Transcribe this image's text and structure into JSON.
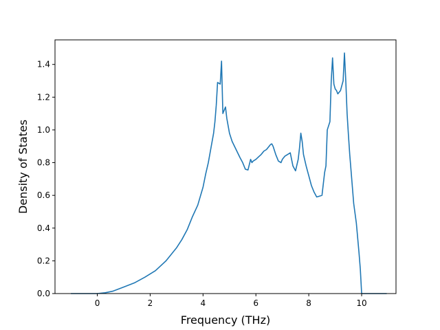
{
  "chart_data": {
    "type": "line",
    "title": "",
    "xlabel": "Frequency (THz)",
    "ylabel": "Density of States",
    "xlim": [
      -1.6,
      11.3
    ],
    "ylim": [
      0.0,
      1.55
    ],
    "xticks": [
      0,
      2,
      4,
      6,
      8,
      10
    ],
    "xtick_labels": [
      "0",
      "2",
      "4",
      "6",
      "8",
      "10"
    ],
    "yticks": [
      0.0,
      0.2,
      0.4,
      0.6,
      0.8,
      1.0,
      1.2,
      1.4
    ],
    "ytick_labels": [
      "0.0",
      "0.2",
      "0.4",
      "0.6",
      "0.8",
      "1.0",
      "1.2",
      "1.4"
    ],
    "grid": false,
    "legend": "none",
    "line_color": "#1f77b4",
    "series": [
      {
        "x": [
          -1.0,
          -0.5,
          0.0,
          0.3,
          0.6,
          1.0,
          1.4,
          1.8,
          2.2,
          2.6,
          2.8,
          3.0,
          3.2,
          3.4,
          3.6,
          3.8,
          4.0,
          4.1,
          4.2,
          4.3,
          4.4,
          4.45,
          4.5,
          4.55,
          4.65,
          4.7,
          4.75,
          4.85,
          4.9,
          5.0,
          5.1,
          5.25,
          5.4,
          5.5,
          5.6,
          5.7,
          5.8,
          5.85,
          5.9,
          6.0,
          6.1,
          6.2,
          6.3,
          6.4,
          6.5,
          6.55,
          6.6,
          6.65,
          6.75,
          6.85,
          6.95,
          7.0,
          7.1,
          7.2,
          7.3,
          7.35,
          7.4,
          7.5,
          7.6,
          7.65,
          7.7,
          7.75,
          7.8,
          7.9,
          8.0,
          8.1,
          8.2,
          8.3,
          8.4,
          8.5,
          8.55,
          8.6,
          8.65,
          8.7,
          8.8,
          8.85,
          8.9,
          8.95,
          9.0,
          9.05,
          9.1,
          9.15,
          9.2,
          9.3,
          9.35,
          9.4,
          9.45,
          9.5,
          9.55,
          9.6,
          9.7,
          9.8,
          9.9,
          9.95,
          10.0,
          10.5,
          10.95
        ],
        "y": [
          0.0,
          0.0,
          0.0,
          0.005,
          0.015,
          0.04,
          0.065,
          0.1,
          0.14,
          0.2,
          0.24,
          0.28,
          0.33,
          0.39,
          0.47,
          0.54,
          0.65,
          0.73,
          0.8,
          0.89,
          0.98,
          1.05,
          1.15,
          1.29,
          1.28,
          1.42,
          1.1,
          1.14,
          1.07,
          0.98,
          0.93,
          0.88,
          0.83,
          0.8,
          0.76,
          0.755,
          0.82,
          0.8,
          0.81,
          0.82,
          0.835,
          0.85,
          0.87,
          0.88,
          0.9,
          0.91,
          0.915,
          0.9,
          0.85,
          0.81,
          0.8,
          0.82,
          0.84,
          0.85,
          0.86,
          0.82,
          0.78,
          0.75,
          0.82,
          0.89,
          0.98,
          0.93,
          0.85,
          0.78,
          0.72,
          0.66,
          0.62,
          0.59,
          0.595,
          0.6,
          0.67,
          0.74,
          0.78,
          1.0,
          1.05,
          1.3,
          1.44,
          1.28,
          1.25,
          1.24,
          1.22,
          1.23,
          1.24,
          1.3,
          1.47,
          1.3,
          1.1,
          0.97,
          0.85,
          0.75,
          0.55,
          0.43,
          0.25,
          0.15,
          0.0,
          0.0,
          0.0
        ]
      }
    ]
  }
}
